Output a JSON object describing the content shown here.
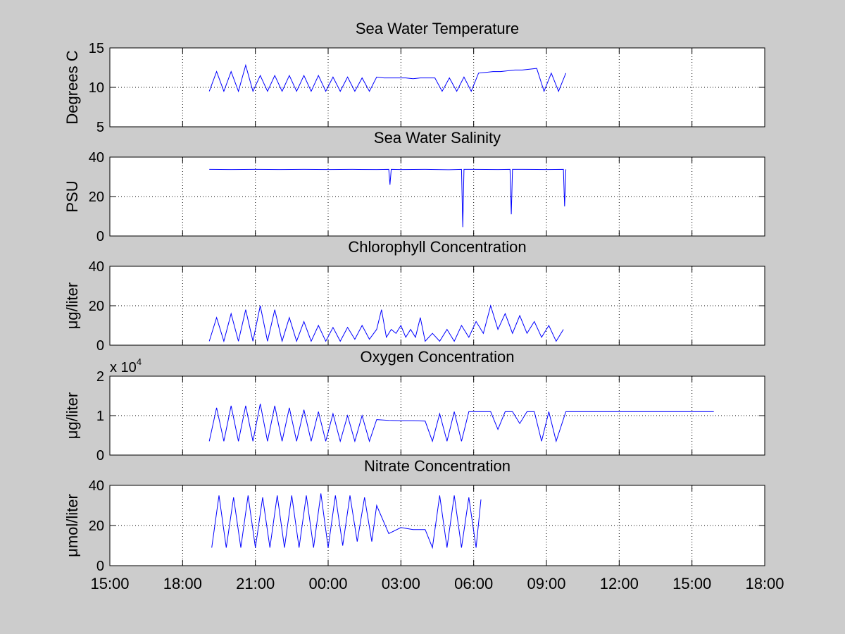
{
  "figure": {
    "background": "#cccccc",
    "axes_background": "#ffffff",
    "line_color": "#0000ff",
    "x_tick_labels": [
      "15:00",
      "18:00",
      "21:00",
      "00:00",
      "03:00",
      "06:00",
      "09:00",
      "12:00",
      "15:00",
      "18:00"
    ]
  },
  "chart_data": [
    {
      "type": "line",
      "title": "Sea Water Temperature",
      "ylabel": "Degrees C",
      "ylim": [
        5,
        15
      ],
      "yticks": [
        "5",
        "10",
        "15"
      ],
      "xlim": [
        "15:00",
        "18:00 (+1 day)"
      ],
      "grid": true,
      "series": [
        {
          "x_hours": [
            4.1,
            4.4,
            4.7,
            5.0,
            5.3,
            5.6,
            5.9,
            6.2,
            6.5,
            6.8,
            7.1,
            7.4,
            7.7,
            8.0,
            8.3,
            8.6,
            8.9,
            9.2,
            9.5,
            9.8,
            10.1,
            10.4,
            10.7,
            11.0,
            11.3,
            11.6,
            11.9,
            12.2,
            12.5,
            12.8,
            13.1,
            13.4,
            13.7,
            14.0,
            14.3,
            14.6,
            14.9,
            15.2,
            15.5,
            15.8,
            16.1,
            16.4,
            16.7,
            17.0,
            17.3,
            17.6,
            17.9,
            18.2,
            18.5,
            18.8
          ],
          "y": [
            9.5,
            12,
            9.5,
            12,
            9.5,
            12.8,
            9.5,
            11.5,
            9.5,
            11.5,
            9.5,
            11.5,
            9.5,
            11.5,
            9.5,
            11.5,
            9.5,
            11.3,
            9.5,
            11.3,
            9.5,
            11.2,
            9.5,
            11.3,
            11.2,
            11.2,
            11.2,
            11.2,
            11.1,
            11.2,
            11.2,
            11.2,
            9.5,
            11.2,
            9.5,
            11.3,
            9.5,
            11.8,
            11.9,
            12.0,
            12.0,
            12.1,
            12.2,
            12.2,
            12.3,
            12.4,
            9.5,
            11.8,
            9.5,
            11.8
          ]
        }
      ]
    },
    {
      "type": "line",
      "title": "Sea Water Salinity",
      "ylabel": "PSU",
      "ylim": [
        0,
        40
      ],
      "yticks": [
        "0",
        "20",
        "40"
      ],
      "grid": true,
      "series": [
        {
          "x_hours": [
            4.1,
            5.0,
            6.0,
            7.0,
            8.0,
            9.0,
            10.0,
            11.0,
            11.5,
            11.55,
            11.6,
            12.0,
            13.0,
            14.0,
            14.5,
            14.55,
            14.6,
            15.0,
            16.0,
            16.5,
            16.55,
            16.6,
            17.0,
            18.0,
            18.7,
            18.75,
            18.8
          ],
          "y": [
            33.8,
            33.7,
            33.8,
            33.7,
            33.8,
            33.7,
            33.8,
            33.7,
            33.8,
            26,
            33.8,
            33.7,
            33.8,
            33.6,
            33.8,
            4.5,
            33.8,
            33.8,
            33.7,
            33.8,
            11,
            33.8,
            33.8,
            33.7,
            33.8,
            15,
            33.8
          ]
        }
      ]
    },
    {
      "type": "line",
      "title": "Chlorophyll Concentration",
      "ylabel": "μg/liter",
      "ylim": [
        0,
        40
      ],
      "yticks": [
        "0",
        "20",
        "40"
      ],
      "grid": true,
      "series": [
        {
          "x_hours": [
            4.1,
            4.4,
            4.7,
            5.0,
            5.3,
            5.6,
            5.9,
            6.2,
            6.5,
            6.8,
            7.1,
            7.4,
            7.7,
            8.0,
            8.3,
            8.6,
            8.9,
            9.2,
            9.5,
            9.8,
            10.1,
            10.4,
            10.7,
            11.0,
            11.2,
            11.4,
            11.6,
            11.8,
            12.0,
            12.2,
            12.4,
            12.6,
            12.8,
            13.0,
            13.3,
            13.6,
            13.9,
            14.2,
            14.5,
            14.8,
            15.1,
            15.4,
            15.7,
            16.0,
            16.3,
            16.6,
            16.9,
            17.2,
            17.5,
            17.8,
            18.1,
            18.4,
            18.7
          ],
          "y": [
            2,
            14,
            2,
            16,
            2,
            18,
            2,
            20,
            2,
            18,
            2,
            14,
            2,
            12,
            2,
            10,
            2,
            9,
            2,
            9,
            3,
            10,
            3,
            8,
            18,
            4,
            8,
            6,
            10,
            4,
            8,
            4,
            14,
            2,
            6,
            2,
            8,
            2,
            10,
            4,
            12,
            6,
            20,
            8,
            16,
            6,
            15,
            6,
            12,
            4,
            10,
            2,
            8
          ]
        }
      ]
    },
    {
      "type": "line",
      "title": "Oxygen Concentration",
      "ylabel": "μg/liter",
      "ylim": [
        0,
        2
      ],
      "yticks": [
        "0",
        "1",
        "2"
      ],
      "y_multiplier": "x 10^4",
      "grid": true,
      "series": [
        {
          "x_hours": [
            4.1,
            4.4,
            4.7,
            5.0,
            5.3,
            5.6,
            5.9,
            6.2,
            6.5,
            6.8,
            7.1,
            7.4,
            7.7,
            8.0,
            8.3,
            8.6,
            8.9,
            9.2,
            9.5,
            9.8,
            10.1,
            10.4,
            10.7,
            11.0,
            11.5,
            12.0,
            12.5,
            13.0,
            13.3,
            13.6,
            13.9,
            14.2,
            14.5,
            14.8,
            15.1,
            15.4,
            15.7,
            16.0,
            16.3,
            16.6,
            16.9,
            17.2,
            17.5,
            17.8,
            18.1,
            18.4,
            18.8,
            19.5,
            21.0,
            22.5,
            24.0,
            24.9
          ],
          "y": [
            0.35,
            1.2,
            0.35,
            1.25,
            0.35,
            1.25,
            0.35,
            1.3,
            0.35,
            1.25,
            0.35,
            1.2,
            0.35,
            1.15,
            0.35,
            1.1,
            0.35,
            1.05,
            0.35,
            1.0,
            0.35,
            1.0,
            0.35,
            0.9,
            0.88,
            0.87,
            0.87,
            0.86,
            0.35,
            1.05,
            0.35,
            1.1,
            0.35,
            1.1,
            1.1,
            1.1,
            1.1,
            0.65,
            1.1,
            1.1,
            0.8,
            1.1,
            1.1,
            0.35,
            1.1,
            0.35,
            1.1,
            1.1,
            1.1,
            1.1,
            1.1,
            1.1
          ]
        }
      ]
    },
    {
      "type": "line",
      "title": "Nitrate Concentration",
      "ylabel": "μmol/liter",
      "ylim": [
        0,
        40
      ],
      "yticks": [
        "0",
        "20",
        "40"
      ],
      "grid": true,
      "series": [
        {
          "x_hours": [
            4.2,
            4.5,
            4.8,
            5.1,
            5.4,
            5.7,
            6.0,
            6.3,
            6.6,
            6.9,
            7.2,
            7.5,
            7.8,
            8.1,
            8.4,
            8.7,
            9.0,
            9.3,
            9.6,
            9.9,
            10.2,
            10.5,
            10.8,
            11.0,
            11.5,
            12.0,
            12.5,
            13.0,
            13.3,
            13.6,
            13.9,
            14.2,
            14.5,
            14.8,
            15.1,
            15.3
          ],
          "y": [
            9,
            35,
            9,
            34,
            9,
            35,
            9,
            34,
            9,
            35,
            9,
            35,
            9,
            35,
            9,
            36,
            9,
            35,
            10,
            35,
            12,
            34,
            12,
            30,
            16,
            19,
            18,
            18,
            9,
            35,
            9,
            35,
            9,
            34,
            9,
            33
          ]
        }
      ]
    }
  ]
}
